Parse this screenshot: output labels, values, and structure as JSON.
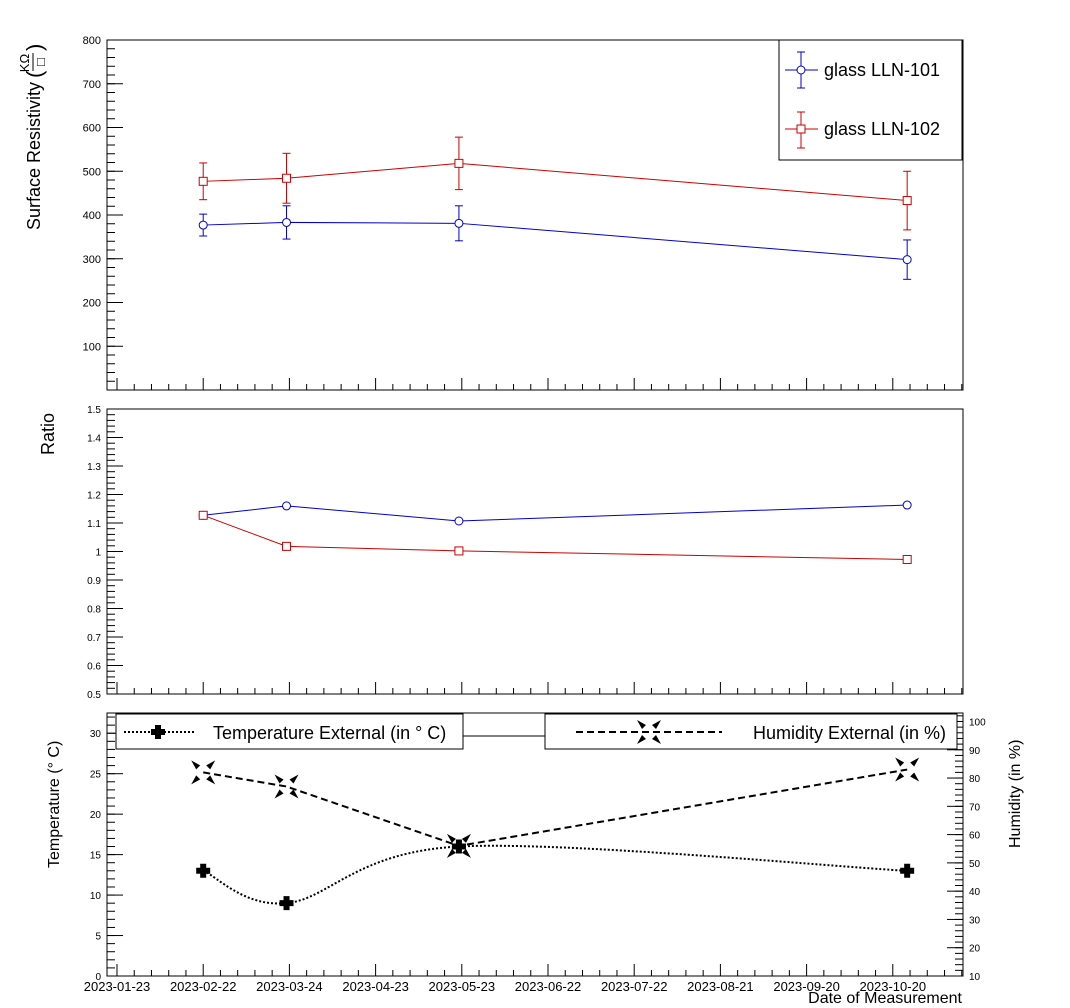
{
  "chart_data": [
    {
      "type": "line",
      "panel": "surface-resistivity",
      "ylabel": "Surface Resistivity",
      "ylabel_unit_num": "KΩ",
      "ylabel_unit_den": "□",
      "ylim": [
        0,
        800
      ],
      "y_ticks": [
        100,
        200,
        300,
        400,
        500,
        600,
        700,
        800
      ],
      "x_dates": [
        "2023-02-22",
        "2023-03-23",
        "2023-05-22",
        "2023-10-25"
      ],
      "series": [
        {
          "name": "glass LLN-101",
          "color": "#0000cc",
          "marker": "circle",
          "values": [
            377,
            383,
            381,
            298
          ],
          "errors": [
            25,
            38,
            40,
            45
          ]
        },
        {
          "name": "glass LLN-102",
          "color": "#cc0000",
          "marker": "square",
          "values": [
            477,
            484,
            518,
            433
          ],
          "errors": [
            42,
            57,
            60,
            67
          ]
        }
      ]
    },
    {
      "type": "line",
      "panel": "ratio",
      "ylabel": "Ratio",
      "ylim": [
        0.5,
        1.5
      ],
      "y_ticks": [
        "0.5",
        "0.6",
        "0.7",
        "0.8",
        "0.9",
        "1",
        "1.1",
        "1.2",
        "1.3",
        "1.4",
        "1.5"
      ],
      "x_dates": [
        "2023-02-22",
        "2023-03-23",
        "2023-05-22",
        "2023-10-25"
      ],
      "series": [
        {
          "name": "glass LLN-101",
          "color": "#0000cc",
          "marker": "circle",
          "values": [
            1.127,
            1.16,
            1.107,
            1.163
          ]
        },
        {
          "name": "glass LLN-102",
          "color": "#cc0000",
          "marker": "square",
          "values": [
            1.127,
            1.018,
            1.002,
            0.972
          ]
        }
      ]
    },
    {
      "type": "line",
      "panel": "environment",
      "xlabel": "Date of Measurement",
      "ylabel_left": "Temperature (° C)",
      "ylabel_right": "Humidity (in %)",
      "ylim_left": [
        0,
        32.5
      ],
      "ylim_right": [
        10,
        103
      ],
      "y_ticks_left": [
        0,
        5,
        10,
        15,
        20,
        25,
        30
      ],
      "y_ticks_right": [
        10,
        20,
        30,
        40,
        50,
        60,
        70,
        80,
        90,
        100
      ],
      "x_range": [
        "2023-01-20",
        "2023-11-20"
      ],
      "x_ticks": [
        "2023-01-23",
        "2023-02-22",
        "2023-03-24",
        "2023-04-23",
        "2023-05-23",
        "2023-06-22",
        "2023-07-22",
        "2023-08-21",
        "2023-09-20",
        "2023-10-20"
      ],
      "x_dates": [
        "2023-02-22",
        "2023-03-23",
        "2023-05-22",
        "2023-10-25"
      ],
      "series": [
        {
          "name": "Temperature External (in ° C)",
          "axis": "left",
          "style": "dotted",
          "marker": "cross",
          "values": [
            13,
            9,
            16,
            13
          ]
        },
        {
          "name": "Humidity External (in %)",
          "axis": "right",
          "style": "dashed",
          "marker": "star",
          "values": [
            82,
            77,
            56,
            83
          ]
        }
      ]
    }
  ]
}
